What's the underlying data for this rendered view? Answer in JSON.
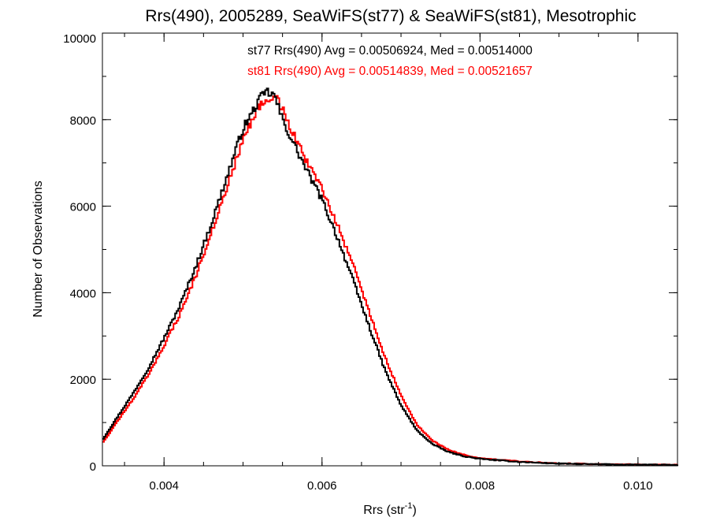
{
  "chart_data": {
    "type": "line",
    "step": true,
    "title": "Rrs(490), 2005289, SeaWiFS(st77) & SeaWiFS(st81), Mesotrophic",
    "xlabel_main": "Rrs (str",
    "xlabel_sup": "-1",
    "xlabel_close": ")",
    "ylabel": "Number of Observations",
    "xlim": [
      0.00322,
      0.0105
    ],
    "ylim": [
      0,
      10000
    ],
    "x_ticks": [
      {
        "value": 0.004,
        "label": "0.004"
      },
      {
        "value": 0.006,
        "label": "0.006"
      },
      {
        "value": 0.008,
        "label": "0.008"
      },
      {
        "value": 0.01,
        "label": "0.010"
      }
    ],
    "x_minor_step": 0.0005,
    "y_ticks": [
      {
        "value": 0,
        "label": "0"
      },
      {
        "value": 2000,
        "label": "2000"
      },
      {
        "value": 4000,
        "label": "4000"
      },
      {
        "value": 6000,
        "label": "6000"
      },
      {
        "value": 8000,
        "label": "8000"
      },
      {
        "value": 10000,
        "label": "10000"
      }
    ],
    "y_minor_step": 1000,
    "grid": false,
    "bin_width": 2e-05,
    "annotations": [
      {
        "text": "st77 Rrs(490) Avg = 0.00506924, Med = 0.00514000",
        "color": "#000000"
      },
      {
        "text": "st81 Rrs(490) Avg = 0.00514839, Med = 0.00521657",
        "color": "#ff0000"
      }
    ],
    "series": [
      {
        "color": "#000000",
        "x": [
          0.00322,
          0.0034,
          0.0036,
          0.0038,
          0.004,
          0.0042,
          0.0044,
          0.0046,
          0.0048,
          0.005,
          0.0051,
          0.0052,
          0.0053,
          0.0054,
          0.0055,
          0.0056,
          0.0058,
          0.006,
          0.0062,
          0.0064,
          0.0066,
          0.0068,
          0.007,
          0.0072,
          0.0074,
          0.0076,
          0.0078,
          0.008,
          0.0085,
          0.009,
          0.0095,
          0.01,
          0.0105
        ],
        "y": [
          600,
          1100,
          1650,
          2250,
          2950,
          3700,
          4600,
          5600,
          6700,
          7800,
          8100,
          8450,
          8650,
          8550,
          8000,
          7600,
          6850,
          6150,
          5250,
          4250,
          3200,
          2200,
          1400,
          820,
          500,
          320,
          220,
          160,
          90,
          50,
          35,
          25,
          20
        ]
      },
      {
        "color": "#ff0000",
        "x": [
          0.00322,
          0.0034,
          0.0036,
          0.0038,
          0.004,
          0.0042,
          0.0044,
          0.0046,
          0.0048,
          0.005,
          0.0051,
          0.0052,
          0.0053,
          0.0054,
          0.0055,
          0.0056,
          0.0058,
          0.006,
          0.0062,
          0.0064,
          0.0066,
          0.0068,
          0.007,
          0.0072,
          0.0074,
          0.0076,
          0.0078,
          0.008,
          0.0085,
          0.009,
          0.0095,
          0.01,
          0.0105
        ],
        "y": [
          520,
          1000,
          1520,
          2100,
          2780,
          3500,
          4380,
          5380,
          6450,
          7550,
          7950,
          8300,
          8500,
          8580,
          8250,
          7800,
          7050,
          6400,
          5550,
          4600,
          3550,
          2500,
          1620,
          950,
          580,
          370,
          250,
          175,
          100,
          55,
          38,
          28,
          22
        ]
      }
    ]
  }
}
